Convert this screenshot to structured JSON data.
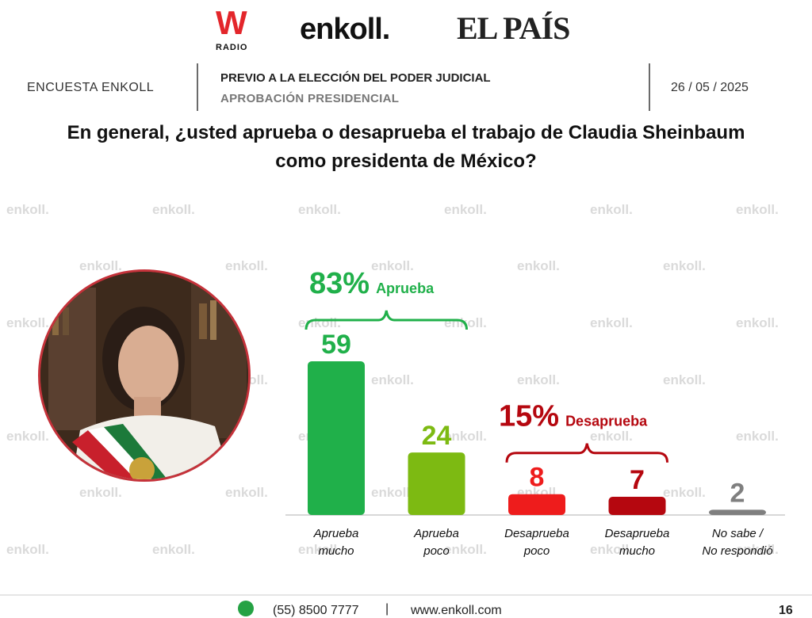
{
  "logos": {
    "wradio_w": "W",
    "wradio_radio": "RADIO",
    "enkoll": "enkoll.",
    "elpais": "EL PAÍS"
  },
  "header": {
    "left": "ENCUESTA ENKOLL",
    "title": "PREVIO A LA ELECCIÓN DEL PODER JUDICIAL",
    "subtitle": "APROBACIÓN PRESIDENCIAL",
    "date": "26 / 05 / 2025"
  },
  "question": "En general, ¿usted aprueba o desaprueba el trabajo de Claudia Sheinbaum como presidenta de México?",
  "watermark": "enkoll.",
  "chart_data": {
    "type": "bar",
    "categories": [
      "Aprueba mucho",
      "Aprueba poco",
      "Desaprueba poco",
      "Desaprueba mucho",
      "No sabe / No respondió"
    ],
    "values": [
      59,
      24,
      8,
      7,
      2
    ],
    "colors": [
      "#20b04a",
      "#7dba12",
      "#ee1c1c",
      "#b5070f",
      "#7f7f7f"
    ],
    "groups": [
      {
        "pct": "83%",
        "label": "Aprueba",
        "color": "#20b04a",
        "from": 0,
        "to": 1
      },
      {
        "pct": "15%",
        "label": "Desaprueba",
        "color": "#b5070f",
        "from": 2,
        "to": 3
      }
    ]
  },
  "footer": {
    "phone": "(55) 8500 7777",
    "sep": "|",
    "web": "www.enkoll.com",
    "page": "16"
  }
}
